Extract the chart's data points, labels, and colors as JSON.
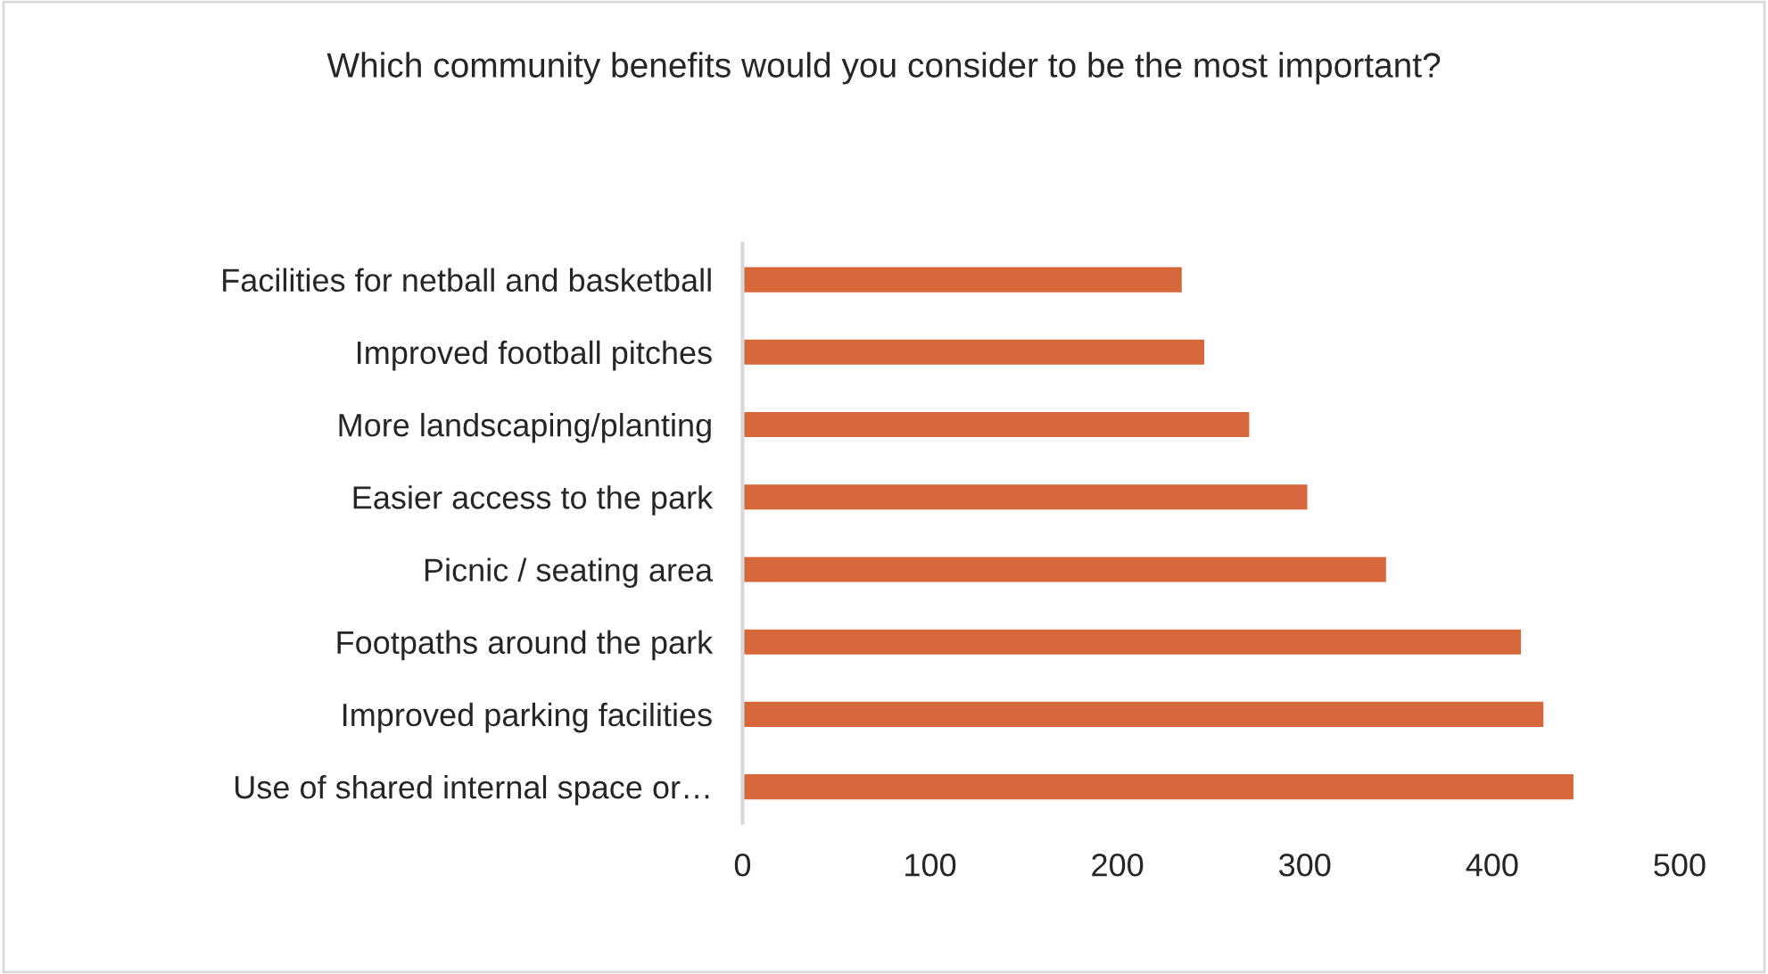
{
  "chart_data": {
    "type": "bar",
    "orientation": "horizontal",
    "title": "Which community benefits would you consider to be the most important?",
    "categories": [
      "Facilities for netball and basketball",
      "Improved football pitches",
      "More landscaping/planting",
      "Easier access to the park",
      "Picnic / seating area",
      "Footpaths around the park",
      "Improved parking facilities",
      "Use of shared internal space or…"
    ],
    "values": [
      235,
      247,
      271,
      302,
      344,
      416,
      428,
      444
    ],
    "color": "#d6673a",
    "xlim": [
      0,
      500
    ],
    "xticks": [
      0,
      100,
      200,
      300,
      400,
      500
    ],
    "grid": false,
    "legend": false
  }
}
